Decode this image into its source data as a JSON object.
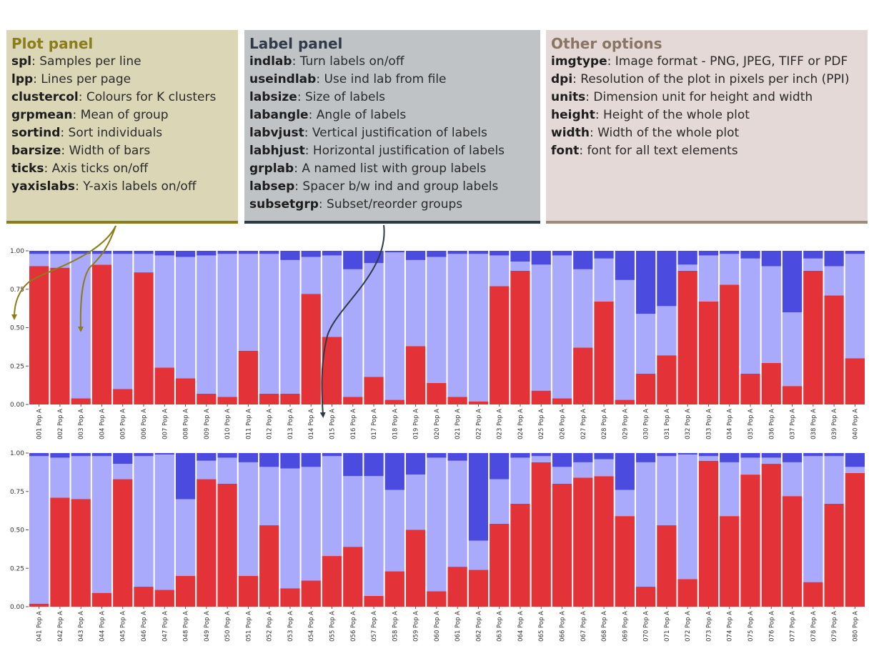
{
  "panels": {
    "plot": {
      "title": "Plot panel",
      "items": [
        {
          "key": "spl",
          "desc": ": Samples per line"
        },
        {
          "key": "lpp",
          "desc": ": Lines per page"
        },
        {
          "key": "clustercol",
          "desc": ": Colours for K clusters"
        },
        {
          "key": "grpmean",
          "desc": ": Mean of group"
        },
        {
          "key": "sortind",
          "desc": ": Sort individuals"
        },
        {
          "key": "barsize",
          "desc": ": Width of bars"
        },
        {
          "key": "ticks",
          "desc": ": Axis ticks on/off"
        },
        {
          "key": "yaxislabs",
          "desc": ": Y-axis labels on/off"
        }
      ]
    },
    "label": {
      "title": "Label panel",
      "items": [
        {
          "key": "indlab",
          "desc": ": Turn labels on/off"
        },
        {
          "key": "useindlab",
          "desc": ": Use ind lab from file"
        },
        {
          "key": "labsize",
          "desc": ": Size of labels"
        },
        {
          "key": "labangle",
          "desc": ": Angle of labels"
        },
        {
          "key": "labvjust",
          "desc": ": Vertical justification of labels"
        },
        {
          "key": "labhjust",
          "desc": ": Horizontal justification of labels"
        },
        {
          "key": "grplab",
          "desc": ": A named list with  group labels"
        },
        {
          "key": "labsep",
          "desc": ": Spacer b/w ind and group labels"
        },
        {
          "key": "subsetgrp",
          "desc": ": Subset/reorder groups"
        }
      ]
    },
    "other": {
      "title": "Other options",
      "items": [
        {
          "key": "imgtype",
          "desc": ": Image format - PNG, JPEG, TIFF or PDF"
        },
        {
          "key": "dpi",
          "desc": ": Resolution of the plot in pixels per inch (PPI)"
        },
        {
          "key": "units",
          "desc": ": Dimension unit for height and width"
        },
        {
          "key": "height",
          "desc": ": Height of the whole plot"
        },
        {
          "key": "width",
          "desc": ": Width of the whole plot"
        },
        {
          "key": "font",
          "desc": ": font for all text elements"
        }
      ]
    }
  },
  "colors": {
    "k1": "#e33338",
    "k2": "#aaaafd",
    "k3": "#4b4be0",
    "plot_accent": "#8a7d1a",
    "label_accent": "#2f3a47"
  },
  "chart_data": [
    {
      "type": "bar",
      "stacked": true,
      "ylim": [
        0,
        1
      ],
      "yticks": [
        "0.00",
        "0.25",
        "0.50",
        "0.75",
        "1.00"
      ],
      "categories": [
        "001 Pop A",
        "002 Pop A",
        "003 Pop A",
        "004 Pop A",
        "005 Pop A",
        "006 Pop A",
        "007 Pop A",
        "008 Pop A",
        "009 Pop A",
        "010 Pop A",
        "011 Pop A",
        "012 Pop A",
        "013 Pop A",
        "014 Pop A",
        "015 Pop A",
        "016 Pop A",
        "017 Pop A",
        "018 Pop A",
        "019 Pop A",
        "020 Pop A",
        "021 Pop A",
        "022 Pop A",
        "023 Pop A",
        "024 Pop A",
        "025 Pop A",
        "026 Pop A",
        "027 Pop A",
        "028 Pop A",
        "029 Pop A",
        "030 Pop A",
        "031 Pop A",
        "032 Pop A",
        "033 Pop A",
        "034 Pop A",
        "035 Pop A",
        "036 Pop A",
        "037 Pop A",
        "038 Pop A",
        "039 Pop A",
        "040 Pop A"
      ],
      "series": [
        {
          "values": [
            0.9,
            0.89,
            0.04,
            0.91,
            0.1,
            0.86,
            0.24,
            0.17,
            0.07,
            0.05,
            0.35,
            0.07,
            0.07,
            0.72,
            0.44,
            0.05,
            0.18,
            0.03,
            0.38,
            0.14,
            0.05,
            0.02,
            0.77,
            0.87,
            0.09,
            0.04,
            0.37,
            0.67,
            0.03,
            0.2,
            0.32,
            0.87,
            0.67,
            0.78,
            0.2,
            0.27,
            0.12,
            0.87,
            0.71,
            0.3
          ]
        },
        {
          "values": [
            0.08,
            0.09,
            0.94,
            0.07,
            0.88,
            0.12,
            0.73,
            0.79,
            0.9,
            0.93,
            0.63,
            0.91,
            0.87,
            0.24,
            0.53,
            0.83,
            0.74,
            0.96,
            0.56,
            0.82,
            0.93,
            0.96,
            0.2,
            0.06,
            0.82,
            0.93,
            0.51,
            0.28,
            0.78,
            0.39,
            0.32,
            0.04,
            0.3,
            0.2,
            0.75,
            0.63,
            0.48,
            0.08,
            0.19,
            0.68
          ]
        },
        {
          "values": [
            0.02,
            0.02,
            0.02,
            0.02,
            0.02,
            0.02,
            0.03,
            0.04,
            0.03,
            0.02,
            0.02,
            0.02,
            0.06,
            0.04,
            0.03,
            0.12,
            0.08,
            0.01,
            0.06,
            0.04,
            0.02,
            0.02,
            0.03,
            0.07,
            0.09,
            0.03,
            0.12,
            0.05,
            0.19,
            0.41,
            0.36,
            0.09,
            0.03,
            0.02,
            0.05,
            0.1,
            0.4,
            0.05,
            0.1,
            0.02
          ]
        }
      ]
    },
    {
      "type": "bar",
      "stacked": true,
      "ylim": [
        0,
        1
      ],
      "yticks": [
        "0.00",
        "0.25",
        "0.50",
        "0.75",
        "1.00"
      ],
      "categories": [
        "041 Pop A",
        "042 Pop A",
        "043 Pop A",
        "044 Pop A",
        "045 Pop A",
        "046 Pop A",
        "047 Pop A",
        "048 Pop A",
        "049 Pop A",
        "050 Pop A",
        "051 Pop A",
        "052 Pop A",
        "053 Pop A",
        "054 Pop A",
        "055 Pop A",
        "056 Pop A",
        "057 Pop A",
        "058 Pop A",
        "059 Pop A",
        "060 Pop A",
        "061 Pop A",
        "062 Pop A",
        "063 Pop A",
        "064 Pop A",
        "065 Pop A",
        "066 Pop A",
        "067 Pop A",
        "068 Pop A",
        "069 Pop A",
        "070 Pop A",
        "071 Pop A",
        "072 Pop A",
        "073 Pop A",
        "074 Pop A",
        "075 Pop A",
        "076 Pop A",
        "077 Pop A",
        "078 Pop A",
        "079 Pop A",
        "080 Pop A"
      ],
      "series": [
        {
          "values": [
            0.02,
            0.71,
            0.7,
            0.09,
            0.83,
            0.13,
            0.11,
            0.2,
            0.83,
            0.8,
            0.2,
            0.53,
            0.12,
            0.17,
            0.33,
            0.39,
            0.07,
            0.23,
            0.5,
            0.1,
            0.26,
            0.24,
            0.54,
            0.67,
            0.94,
            0.8,
            0.84,
            0.85,
            0.59,
            0.13,
            0.53,
            0.18,
            0.95,
            0.59,
            0.86,
            0.93,
            0.72,
            0.16,
            0.67,
            0.87
          ]
        },
        {
          "values": [
            0.96,
            0.26,
            0.28,
            0.89,
            0.1,
            0.85,
            0.88,
            0.5,
            0.12,
            0.17,
            0.74,
            0.38,
            0.78,
            0.74,
            0.65,
            0.46,
            0.78,
            0.53,
            0.36,
            0.87,
            0.69,
            0.19,
            0.29,
            0.3,
            0.04,
            0.11,
            0.1,
            0.11,
            0.17,
            0.81,
            0.45,
            0.81,
            0.03,
            0.35,
            0.11,
            0.04,
            0.22,
            0.82,
            0.31,
            0.04
          ]
        },
        {
          "values": [
            0.02,
            0.03,
            0.02,
            0.02,
            0.07,
            0.02,
            0.01,
            0.3,
            0.05,
            0.03,
            0.06,
            0.09,
            0.1,
            0.09,
            0.02,
            0.15,
            0.15,
            0.24,
            0.14,
            0.03,
            0.05,
            0.57,
            0.17,
            0.03,
            0.02,
            0.09,
            0.06,
            0.04,
            0.24,
            0.06,
            0.02,
            0.01,
            0.02,
            0.06,
            0.03,
            0.03,
            0.06,
            0.02,
            0.02,
            0.09
          ]
        }
      ]
    }
  ]
}
